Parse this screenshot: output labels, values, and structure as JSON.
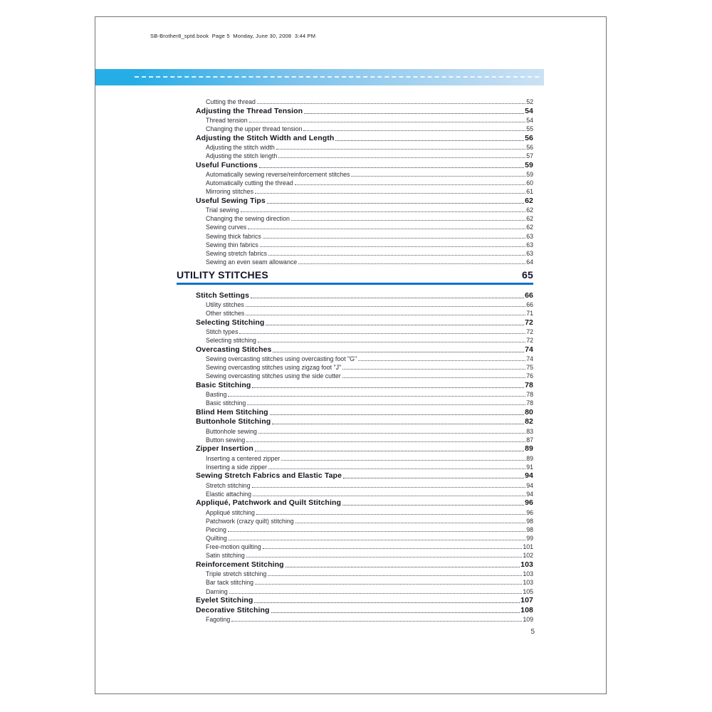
{
  "colors": {
    "banner_left": "#26ade6",
    "banner_right": "#cbe1f4",
    "rule_blue": "#1272c8",
    "ink_dark": "#16161f",
    "ink_sub": "#2e2e38",
    "border_gray": "#737373"
  },
  "document": {
    "header_line": "SB-Brother8_sptd.book  Page 5  Monday, June 30, 2008  3:44 PM",
    "page_number": "5"
  },
  "toc": {
    "entries_top": [
      {
        "level": 2,
        "label": "Cutting the thread",
        "page": "52"
      },
      {
        "level": 1,
        "label": "Adjusting the Thread Tension",
        "page": "54"
      },
      {
        "level": 2,
        "label": "Thread tension",
        "page": "54"
      },
      {
        "level": 2,
        "label": "Changing the upper thread tension",
        "page": "55"
      },
      {
        "level": 1,
        "label": "Adjusting the Stitch Width and Length",
        "page": "56"
      },
      {
        "level": 2,
        "label": "Adjusting the stitch width",
        "page": "56"
      },
      {
        "level": 2,
        "label": "Adjusting the stitch length",
        "page": "57"
      },
      {
        "level": 1,
        "label": "Useful Functions",
        "page": "59"
      },
      {
        "level": 2,
        "label": "Automatically sewing reverse/reinforcement stitches",
        "page": "59"
      },
      {
        "level": 2,
        "label": "Automatically cutting the thread",
        "page": "60"
      },
      {
        "level": 2,
        "label": "Mirroring stitches",
        "page": "61"
      },
      {
        "level": 1,
        "label": "Useful Sewing Tips",
        "page": "62"
      },
      {
        "level": 2,
        "label": "Trial sewing",
        "page": "62"
      },
      {
        "level": 2,
        "label": "Changing the sewing direction",
        "page": "62"
      },
      {
        "level": 2,
        "label": "Sewing curves",
        "page": "62"
      },
      {
        "level": 2,
        "label": "Sewing thick fabrics",
        "page": "63"
      },
      {
        "level": 2,
        "label": "Sewing thin fabrics",
        "page": "63"
      },
      {
        "level": 2,
        "label": "Sewing stretch fabrics",
        "page": "63"
      },
      {
        "level": 2,
        "label": "Sewing an even seam allowance",
        "page": "64"
      }
    ],
    "section_heading": {
      "title": "UTILITY STITCHES",
      "page": "65"
    },
    "entries_bottom": [
      {
        "level": 1,
        "label": "Stitch Settings",
        "page": "66"
      },
      {
        "level": 2,
        "label": "Utility stitches",
        "page": "66"
      },
      {
        "level": 2,
        "label": "Other stitches",
        "page": "71"
      },
      {
        "level": 1,
        "label": "Selecting Stitching",
        "page": "72"
      },
      {
        "level": 2,
        "label": "Stitch types",
        "page": "72"
      },
      {
        "level": 2,
        "label": "Selecting stitching",
        "page": "72"
      },
      {
        "level": 1,
        "label": "Overcasting Stitches",
        "page": "74"
      },
      {
        "level": 2,
        "label": "Sewing overcasting stitches using overcasting foot \"G\"",
        "page": "74"
      },
      {
        "level": 2,
        "label": "Sewing overcasting stitches using zigzag foot \"J\"",
        "page": "75"
      },
      {
        "level": 2,
        "label": "Sewing overcasting stitches using the side cutter",
        "page": "76"
      },
      {
        "level": 1,
        "label": "Basic Stitching",
        "page": "78"
      },
      {
        "level": 2,
        "label": "Basting",
        "page": "78"
      },
      {
        "level": 2,
        "label": "Basic stitching",
        "page": "78"
      },
      {
        "level": 1,
        "label": "Blind Hem Stitching",
        "page": "80"
      },
      {
        "level": 1,
        "label": "Buttonhole Stitching",
        "page": "82"
      },
      {
        "level": 2,
        "label": "Buttonhole sewing",
        "page": "83"
      },
      {
        "level": 2,
        "label": "Button sewing",
        "page": "87"
      },
      {
        "level": 1,
        "label": "Zipper Insertion",
        "page": "89"
      },
      {
        "level": 2,
        "label": "Inserting a centered zipper",
        "page": "89"
      },
      {
        "level": 2,
        "label": "Inserting a side zipper",
        "page": "91"
      },
      {
        "level": 1,
        "label": "Sewing Stretch Fabrics and Elastic Tape",
        "page": "94"
      },
      {
        "level": 2,
        "label": "Stretch stitching",
        "page": "94"
      },
      {
        "level": 2,
        "label": "Elastic attaching",
        "page": "94"
      },
      {
        "level": 1,
        "label": "Appliqué, Patchwork and Quilt Stitching",
        "page": "96"
      },
      {
        "level": 2,
        "label": "Appliqué stitching",
        "page": "96"
      },
      {
        "level": 2,
        "label": "Patchwork (crazy quilt) stitching",
        "page": "98"
      },
      {
        "level": 2,
        "label": "Piecing",
        "page": "98"
      },
      {
        "level": 2,
        "label": "Quilting",
        "page": "99"
      },
      {
        "level": 2,
        "label": "Free-motion quilting",
        "page": "101"
      },
      {
        "level": 2,
        "label": "Satin stitching",
        "page": "102"
      },
      {
        "level": 1,
        "label": "Reinforcement Stitching",
        "page": "103"
      },
      {
        "level": 2,
        "label": "Triple stretch stitching",
        "page": "103"
      },
      {
        "level": 2,
        "label": "Bar tack stitching",
        "page": "103"
      },
      {
        "level": 2,
        "label": "Darning",
        "page": "105"
      },
      {
        "level": 1,
        "label": "Eyelet Stitching",
        "page": "107"
      },
      {
        "level": 1,
        "label": "Decorative Stitching",
        "page": "108"
      },
      {
        "level": 2,
        "label": "Fagoting",
        "page": "109"
      }
    ]
  }
}
